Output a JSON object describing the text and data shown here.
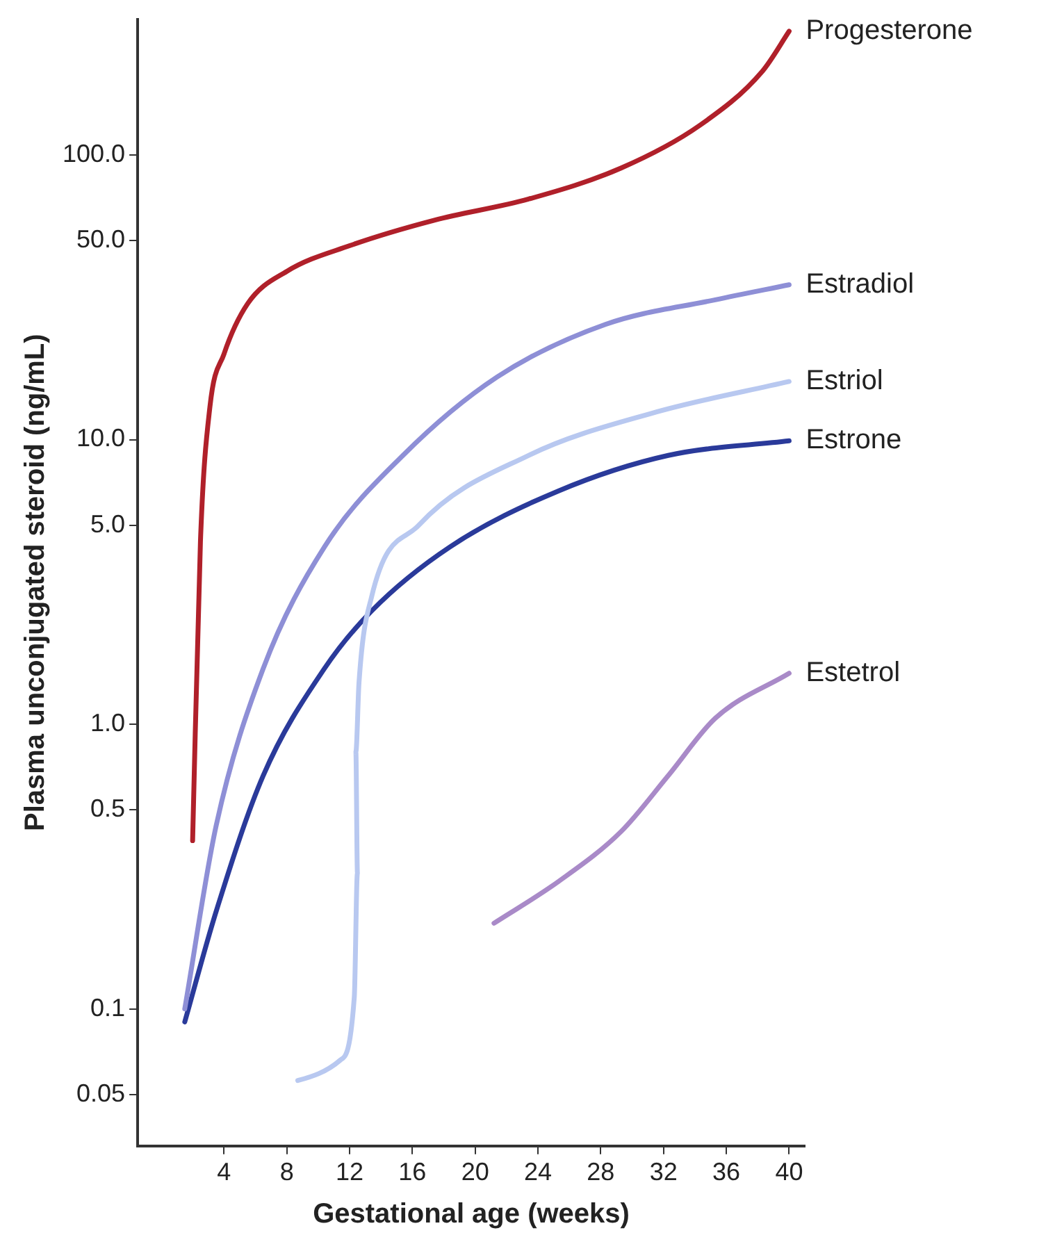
{
  "chart_data": {
    "type": "line",
    "xlabel": "Gestational age (weeks)",
    "ylabel": "Plasma unconjugated steroid (ng/mL)",
    "log": "y",
    "grid": false,
    "legend": false,
    "marker": "none",
    "line_style": "solid",
    "xlim": [
      -1.5,
      41
    ],
    "xticks": [
      4,
      8,
      12,
      16,
      20,
      24,
      28,
      32,
      36,
      40
    ],
    "ylim": [
      0.033,
      300
    ],
    "yticks": [
      {
        "value": 0.05,
        "label": "0.05"
      },
      {
        "value": 0.1,
        "label": "0.1"
      },
      {
        "value": 0.5,
        "label": "0.5"
      },
      {
        "value": 1,
        "label": "1.0"
      },
      {
        "value": 5,
        "label": "5.0"
      },
      {
        "value": 10,
        "label": "10.0"
      },
      {
        "value": 50,
        "label": "50.0"
      },
      {
        "value": 100,
        "label": "100.0"
      }
    ],
    "series": [
      {
        "name": "Progesterone",
        "color": "#b0202a",
        "x": [
          2,
          2.5,
          3.1,
          4,
          5.5,
          8,
          12,
          17.4,
          23.4,
          29.3,
          34.3,
          38.3,
          40
        ],
        "values": [
          0.39,
          4.4,
          13,
          20,
          30,
          39,
          48,
          59,
          70,
          90,
          127,
          197,
          272
        ]
      },
      {
        "name": "Estradiol",
        "color": "#8e8fd6",
        "x": [
          1.5,
          3.5,
          6.5,
          10.4,
          15.4,
          21.4,
          28.3,
          35.3,
          40
        ],
        "values": [
          0.1,
          0.44,
          1.57,
          4.2,
          8.8,
          16.6,
          25.4,
          31,
          35
        ]
      },
      {
        "name": "Estriol",
        "color": "#b8c8f0",
        "x": [
          8.7,
          11.4,
          12.3,
          12.5,
          12.4,
          12.6,
          13.4,
          16.4,
          23.4,
          31.3,
          40
        ],
        "values": [
          0.056,
          0.066,
          0.11,
          0.3,
          0.8,
          1.4,
          2.8,
          5,
          8.8,
          12.4,
          16
        ]
      },
      {
        "name": "Estrone",
        "color": "#2a3a9a",
        "x": [
          1.5,
          3.5,
          6.5,
          10.4,
          13.4,
          18.4,
          25.3,
          32.3,
          40
        ],
        "values": [
          0.09,
          0.22,
          0.66,
          1.57,
          2.5,
          4.2,
          6.6,
          8.8,
          9.9
        ]
      },
      {
        "name": "Estetrol",
        "color": "#a98ac8",
        "x": [
          21.2,
          25.3,
          29.3,
          32.3,
          35.3,
          40
        ],
        "values": [
          0.2,
          0.28,
          0.42,
          0.66,
          1.05,
          1.51
        ]
      }
    ]
  }
}
